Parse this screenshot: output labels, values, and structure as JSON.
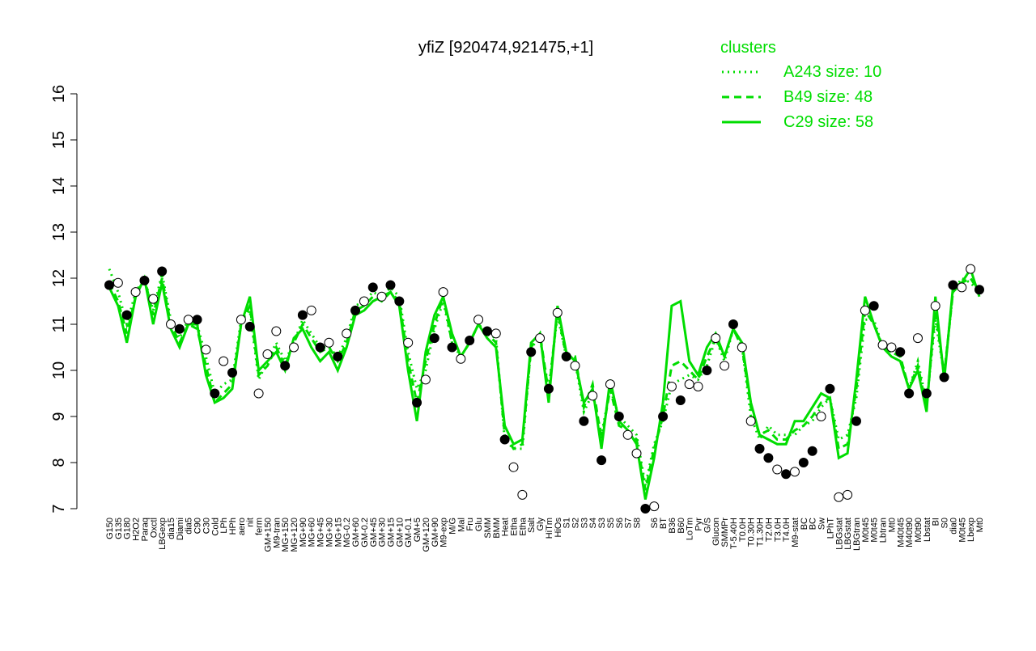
{
  "chart_data": {
    "type": "line",
    "title": "yfiZ [920474,921475,+1]",
    "legend_title": "clusters",
    "legend_color": "#00dd00",
    "legend_position": "top-right",
    "ylim": [
      7,
      16
    ],
    "yticks": [
      7,
      8,
      9,
      10,
      11,
      12,
      13,
      14,
      15,
      16
    ],
    "categories": [
      "G150",
      "G135",
      "G180",
      "H2O2",
      "Paraq",
      "Oxctl",
      "LBGexp",
      "dia15",
      "Diami",
      "dia5",
      "C90",
      "C30",
      "Cold",
      "LPh",
      "HPh",
      "aero",
      "nit",
      "ferm",
      "GM+150",
      "M9-tran",
      "MG+150",
      "MG+120",
      "MG+90",
      "MG+60",
      "MG+45",
      "MG+30",
      "MG+15",
      "MG-0.2",
      "GM+60",
      "GM-0.2",
      "GM+45",
      "GM+30",
      "GM+15",
      "GM+10",
      "GM-0.1",
      "GM+5",
      "GM+120",
      "GM+90",
      "M9-exp",
      "M/G",
      "Mal",
      "Fru",
      "Glu",
      "SMM",
      "BMM",
      "Heat",
      "Etha",
      "Etha",
      "Salt",
      "Gly",
      "HiTm",
      "HiOs",
      "S1",
      "S2",
      "S3",
      "S4",
      "S3",
      "S5",
      "S6",
      "S7",
      "S8",
      null,
      "S6",
      "BT",
      "B36",
      "B60",
      "LoTm",
      "Pyr",
      "G/S",
      "Glucon",
      "SMMPr",
      "T-5.40H",
      "T0.0H",
      "T0.30H",
      "T1.30H",
      "T2.0H",
      "T3.0H",
      "T4.0H",
      "M9-stat",
      "BC",
      "BC",
      "Sw",
      "LPhT",
      "LBGstat",
      "LBGstat",
      "LBGtran",
      "M0t45",
      "M0t45",
      "Lbtran",
      "Mt0",
      "M40t45",
      "M40t90",
      "M0t90",
      "Lbstat",
      "BI",
      "S0",
      "dia0",
      "M0t45",
      "Lbexp",
      "Mt0"
    ],
    "points": {
      "values": [
        11.85,
        11.9,
        11.2,
        11.7,
        11.95,
        11.55,
        12.15,
        11.0,
        10.9,
        11.1,
        11.1,
        10.45,
        9.5,
        10.2,
        9.95,
        11.1,
        10.95,
        9.5,
        10.35,
        10.85,
        10.1,
        10.5,
        11.2,
        11.3,
        10.5,
        10.6,
        10.3,
        10.8,
        11.3,
        11.5,
        11.8,
        11.6,
        11.85,
        11.5,
        10.6,
        9.3,
        9.8,
        10.7,
        11.7,
        10.5,
        10.25,
        10.65,
        11.1,
        10.85,
        10.8,
        8.5,
        7.9,
        7.3,
        10.4,
        10.7,
        9.6,
        11.25,
        10.3,
        10.1,
        8.9,
        9.45,
        8.05,
        9.7,
        9.0,
        8.6,
        8.2,
        7.0,
        7.05,
        9.0,
        9.65,
        9.35,
        9.7,
        9.65,
        10.0,
        10.7,
        10.1,
        11.0,
        10.5,
        8.9,
        8.3,
        8.1,
        7.85,
        7.75,
        7.8,
        8.0,
        8.25,
        9.0,
        9.6,
        7.25,
        7.3,
        8.9,
        11.3,
        11.4,
        10.55,
        10.5,
        10.4,
        9.5,
        10.7,
        9.5,
        11.4,
        9.85,
        11.85,
        11.8,
        12.2,
        11.75
      ],
      "colors": [
        "black",
        "white",
        "black",
        "white",
        "black",
        "white",
        "black",
        "white",
        "black",
        "white",
        "black",
        "white",
        "black",
        "white",
        "black",
        "white",
        "black",
        "white",
        "white",
        "white",
        "black",
        "white",
        "black",
        "white",
        "black",
        "white",
        "black",
        "white",
        "black",
        "white",
        "black",
        "white",
        "black",
        "black",
        "white",
        "black",
        "white",
        "black",
        "white",
        "black",
        "white",
        "black",
        "white",
        "black",
        "white",
        "black",
        "white",
        "white",
        "black",
        "white",
        "black",
        "white",
        "black",
        "white",
        "black",
        "white",
        "black",
        "white",
        "black",
        "white",
        "white",
        "black",
        "white",
        "black",
        "white",
        "black",
        "white",
        "white",
        "black",
        "white",
        "white",
        "black",
        "white",
        "white",
        "black",
        "black",
        "white",
        "black",
        "white",
        "black",
        "black",
        "white",
        "black",
        "white",
        "white",
        "black",
        "white",
        "black",
        "white",
        "white",
        "black",
        "black",
        "white",
        "black",
        "white",
        "black",
        "black",
        "white",
        "white",
        "black"
      ]
    },
    "series": [
      {
        "name": "A243 size: 10",
        "color": "#00dd00",
        "dash": "dotted",
        "values": [
          12.2,
          11.7,
          11.0,
          11.7,
          12.0,
          11.3,
          12.1,
          11.1,
          10.7,
          11.1,
          11.0,
          10.3,
          9.5,
          9.7,
          9.8,
          11.1,
          11.3,
          9.8,
          10.2,
          10.6,
          10.2,
          10.6,
          11.1,
          10.8,
          10.5,
          10.5,
          10.3,
          10.7,
          11.4,
          11.5,
          11.7,
          11.6,
          11.8,
          11.6,
          10.4,
          9.6,
          10.0,
          10.9,
          11.5,
          10.6,
          10.3,
          10.6,
          11.0,
          10.8,
          10.7,
          8.5,
          8.3,
          8.3,
          10.5,
          10.7,
          9.6,
          11.2,
          10.3,
          10.2,
          9.1,
          9.5,
          8.6,
          9.6,
          9.0,
          8.8,
          8.6,
          7.5,
          8.4,
          8.9,
          9.7,
          9.8,
          9.9,
          9.8,
          10.1,
          10.7,
          10.2,
          10.9,
          10.5,
          9.0,
          8.5,
          8.8,
          8.6,
          8.6,
          8.6,
          8.8,
          8.9,
          9.2,
          9.4,
          8.5,
          8.6,
          9.4,
          11.1,
          11.1,
          10.5,
          10.4,
          10.3,
          9.6,
          10.2,
          9.3,
          11.1,
          9.9,
          11.7,
          12.0,
          11.9,
          11.7
        ]
      },
      {
        "name": "B49 size: 48",
        "color": "#00dd00",
        "dash": "dashed",
        "values": [
          11.9,
          11.5,
          10.8,
          11.6,
          12.0,
          11.2,
          12.0,
          11.0,
          10.6,
          11.0,
          10.9,
          10.1,
          9.3,
          9.5,
          9.7,
          11.0,
          11.4,
          9.9,
          10.1,
          10.5,
          10.1,
          10.6,
          11.0,
          10.7,
          10.4,
          10.5,
          10.2,
          10.6,
          11.3,
          11.4,
          11.6,
          11.5,
          11.7,
          11.5,
          10.2,
          9.3,
          10.2,
          11.0,
          11.6,
          10.6,
          10.3,
          10.6,
          11.0,
          10.8,
          10.6,
          8.6,
          8.3,
          8.4,
          10.5,
          10.8,
          9.5,
          11.3,
          10.3,
          10.3,
          9.2,
          9.7,
          8.5,
          9.6,
          8.8,
          8.7,
          8.5,
          7.4,
          8.3,
          9.0,
          10.1,
          10.2,
          10.0,
          9.8,
          10.3,
          10.7,
          10.3,
          10.9,
          10.5,
          9.2,
          8.6,
          8.7,
          8.5,
          8.5,
          8.7,
          8.8,
          9.0,
          9.3,
          9.4,
          8.3,
          8.4,
          9.6,
          11.3,
          11.0,
          10.5,
          10.4,
          10.3,
          9.6,
          10.1,
          9.2,
          11.3,
          9.9,
          11.7,
          11.9,
          12.0,
          11.7
        ]
      },
      {
        "name": "C29 size: 58",
        "color": "#00dd00",
        "dash": "solid",
        "values": [
          11.8,
          11.4,
          10.6,
          11.6,
          12.0,
          11.0,
          11.9,
          10.9,
          10.5,
          11.0,
          11.0,
          9.9,
          9.3,
          9.4,
          9.6,
          11.0,
          11.6,
          10.0,
          10.2,
          10.4,
          10.0,
          10.7,
          10.9,
          10.5,
          10.2,
          10.4,
          10.0,
          10.5,
          11.2,
          11.3,
          11.5,
          11.6,
          11.7,
          11.4,
          10.0,
          8.9,
          10.4,
          11.2,
          11.6,
          10.8,
          10.3,
          10.6,
          11.0,
          10.7,
          10.5,
          8.8,
          8.4,
          8.5,
          10.6,
          10.8,
          9.3,
          11.4,
          10.4,
          10.2,
          9.3,
          9.6,
          8.3,
          9.8,
          8.9,
          8.7,
          8.4,
          7.2,
          8.1,
          9.3,
          11.4,
          11.5,
          10.2,
          9.9,
          10.5,
          10.8,
          10.3,
          10.9,
          10.6,
          9.3,
          8.6,
          8.5,
          8.4,
          8.4,
          8.9,
          8.9,
          9.2,
          9.5,
          9.4,
          8.1,
          8.2,
          9.8,
          11.6,
          11.0,
          10.5,
          10.3,
          10.2,
          9.6,
          10.0,
          9.1,
          11.6,
          9.8,
          11.8,
          11.9,
          12.2,
          11.6
        ]
      }
    ]
  }
}
